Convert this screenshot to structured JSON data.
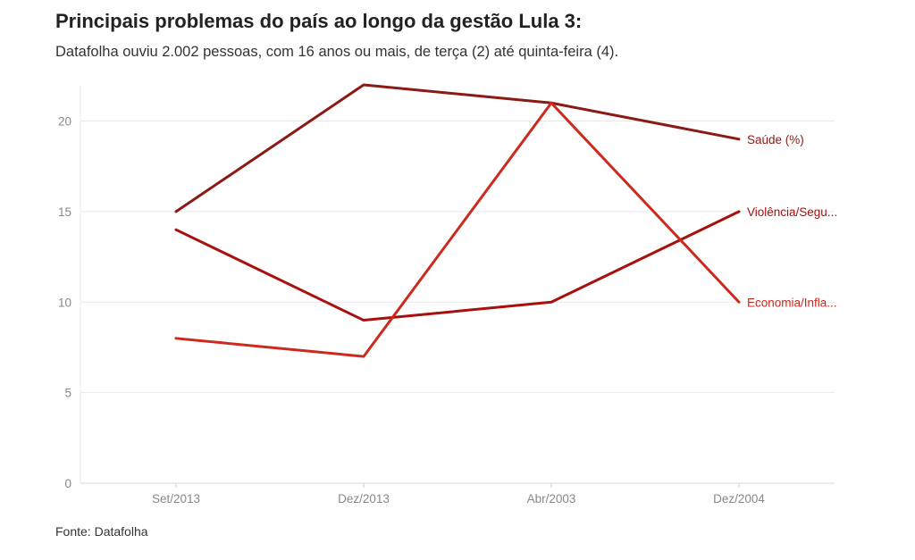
{
  "title": "Principais problemas do país ao longo da gestão Lula 3:",
  "subtitle": "Datafolha ouviu 2.002 pessoas, com 16 anos ou mais, de terça (2) até quinta-feira (4).",
  "source": "Fonte: Datafolha",
  "chart_data": {
    "type": "line",
    "title": "Principais problemas do país ao longo da gestão Lula 3:",
    "categories": [
      "Set/2013",
      "Dez/2013",
      "Abr/2003",
      "Dez/2004"
    ],
    "ylim": [
      0,
      22
    ],
    "yticks": [
      0,
      5,
      10,
      15,
      20
    ],
    "grid": true,
    "legend": "direct labels at line ends (right)",
    "series": [
      {
        "name": "Saúde (%)",
        "label": "Saúde (%)",
        "color": "#8b1a14",
        "values": [
          15,
          22,
          21,
          19
        ]
      },
      {
        "name": "Violência/Segurança",
        "label": "Violência/Segu...",
        "color": "#a8100e",
        "values": [
          14,
          9,
          10,
          15
        ]
      },
      {
        "name": "Economia/Inflação",
        "label": "Economia/Infla...",
        "color": "#cc2a1e",
        "values": [
          8,
          7,
          21,
          10
        ]
      }
    ]
  }
}
